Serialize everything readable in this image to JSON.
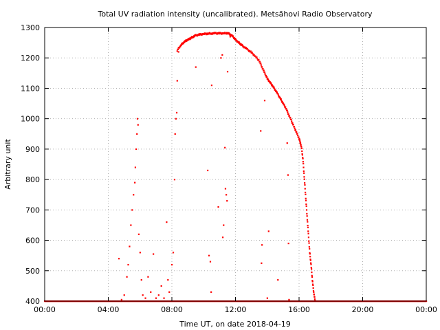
{
  "chart_data": {
    "type": "scatter",
    "title": "Total UV radiation intensity (uncalibrated). Metsähovi Radio Observatory",
    "xlabel": "Time UT, on date 2018-04-19",
    "ylabel": "Arbitrary unit",
    "xlim": [
      "00:00",
      "24:00"
    ],
    "ylim": [
      400,
      1300
    ],
    "x_ticks": [
      "00:00",
      "04:00",
      "08:00",
      "12:00",
      "16:00",
      "20:00",
      "00:00"
    ],
    "y_ticks": [
      "400",
      "500",
      "600",
      "700",
      "800",
      "900",
      "1000",
      "1100",
      "1200",
      "1300"
    ],
    "grid": true,
    "marker_color": "#ff0000",
    "series": [
      {
        "main_curve": [
          [
            "08:20",
            1225
          ],
          [
            "08:30",
            1238
          ],
          [
            "08:40",
            1247
          ],
          [
            "08:50",
            1255
          ],
          [
            "09:00",
            1260
          ],
          [
            "09:10",
            1265
          ],
          [
            "09:20",
            1270
          ],
          [
            "09:30",
            1274
          ],
          [
            "09:45",
            1277
          ],
          [
            "10:00",
            1279
          ],
          [
            "10:15",
            1280
          ],
          [
            "10:30",
            1281
          ],
          [
            "10:45",
            1281
          ],
          [
            "11:00",
            1281
          ],
          [
            "11:15",
            1281
          ],
          [
            "11:30",
            1282
          ],
          [
            "11:40",
            1278
          ],
          [
            "11:50",
            1270
          ],
          [
            "12:00",
            1260
          ],
          [
            "12:10",
            1252
          ],
          [
            "12:20",
            1245
          ],
          [
            "12:30",
            1238
          ],
          [
            "12:45",
            1228
          ],
          [
            "13:00",
            1218
          ],
          [
            "13:15",
            1205
          ],
          [
            "13:30",
            1190
          ],
          [
            "13:40",
            1170
          ],
          [
            "13:50",
            1150
          ],
          [
            "14:00",
            1132
          ],
          [
            "14:10",
            1120
          ],
          [
            "14:20",
            1108
          ],
          [
            "14:30",
            1095
          ],
          [
            "14:40",
            1080
          ],
          [
            "14:50",
            1065
          ],
          [
            "15:00",
            1050
          ],
          [
            "15:10",
            1035
          ],
          [
            "15:20",
            1015
          ],
          [
            "15:30",
            995
          ],
          [
            "15:40",
            975
          ],
          [
            "15:50",
            955
          ],
          [
            "16:00",
            935
          ],
          [
            "16:05",
            920
          ],
          [
            "16:10",
            900
          ],
          [
            "16:15",
            860
          ],
          [
            "16:20",
            800
          ],
          [
            "16:25",
            740
          ],
          [
            "16:30",
            680
          ],
          [
            "16:35",
            620
          ],
          [
            "16:40",
            560
          ],
          [
            "16:45",
            520
          ],
          [
            "16:50",
            470
          ],
          [
            "16:55",
            430
          ],
          [
            "17:00",
            402
          ]
        ],
        "scatter_points": [
          [
            "04:40",
            540
          ],
          [
            "04:50",
            405
          ],
          [
            "05:00",
            420
          ],
          [
            "05:10",
            480
          ],
          [
            "05:15",
            520
          ],
          [
            "05:20",
            580
          ],
          [
            "05:25",
            650
          ],
          [
            "05:30",
            700
          ],
          [
            "05:35",
            750
          ],
          [
            "05:40",
            790
          ],
          [
            "05:42",
            840
          ],
          [
            "05:45",
            900
          ],
          [
            "05:48",
            950
          ],
          [
            "05:50",
            1000
          ],
          [
            "05:52",
            980
          ],
          [
            "05:55",
            620
          ],
          [
            "06:00",
            560
          ],
          [
            "06:05",
            470
          ],
          [
            "06:10",
            420
          ],
          [
            "06:20",
            410
          ],
          [
            "06:30",
            480
          ],
          [
            "06:40",
            430
          ],
          [
            "06:50",
            555
          ],
          [
            "07:00",
            410
          ],
          [
            "07:10",
            420
          ],
          [
            "07:20",
            450
          ],
          [
            "07:30",
            410
          ],
          [
            "07:40",
            660
          ],
          [
            "07:45",
            470
          ],
          [
            "07:50",
            430
          ],
          [
            "08:00",
            520
          ],
          [
            "08:05",
            560
          ],
          [
            "08:10",
            800
          ],
          [
            "08:12",
            950
          ],
          [
            "08:15",
            1000
          ],
          [
            "08:18",
            1020
          ],
          [
            "08:20",
            1125
          ],
          [
            "08:25",
            1220
          ],
          [
            "09:30",
            1170
          ],
          [
            "10:15",
            830
          ],
          [
            "10:20",
            550
          ],
          [
            "10:25",
            530
          ],
          [
            "10:28",
            430
          ],
          [
            "10:30",
            1110
          ],
          [
            "10:55",
            710
          ],
          [
            "11:05",
            1200
          ],
          [
            "11:10",
            1210
          ],
          [
            "11:12",
            610
          ],
          [
            "11:15",
            650
          ],
          [
            "11:20",
            905
          ],
          [
            "11:22",
            770
          ],
          [
            "11:25",
            750
          ],
          [
            "11:28",
            730
          ],
          [
            "11:30",
            1155
          ],
          [
            "11:40",
            1270
          ],
          [
            "13:35",
            960
          ],
          [
            "13:38",
            525
          ],
          [
            "13:40",
            585
          ],
          [
            "13:50",
            1060
          ],
          [
            "14:05",
            630
          ],
          [
            "14:00",
            410
          ],
          [
            "14:40",
            470
          ],
          [
            "15:15",
            920
          ],
          [
            "15:18",
            815
          ],
          [
            "15:20",
            590
          ],
          [
            "15:22",
            405
          ]
        ],
        "baseline": {
          "from": "00:00",
          "to": "24:00",
          "value": 400
        }
      }
    ]
  }
}
